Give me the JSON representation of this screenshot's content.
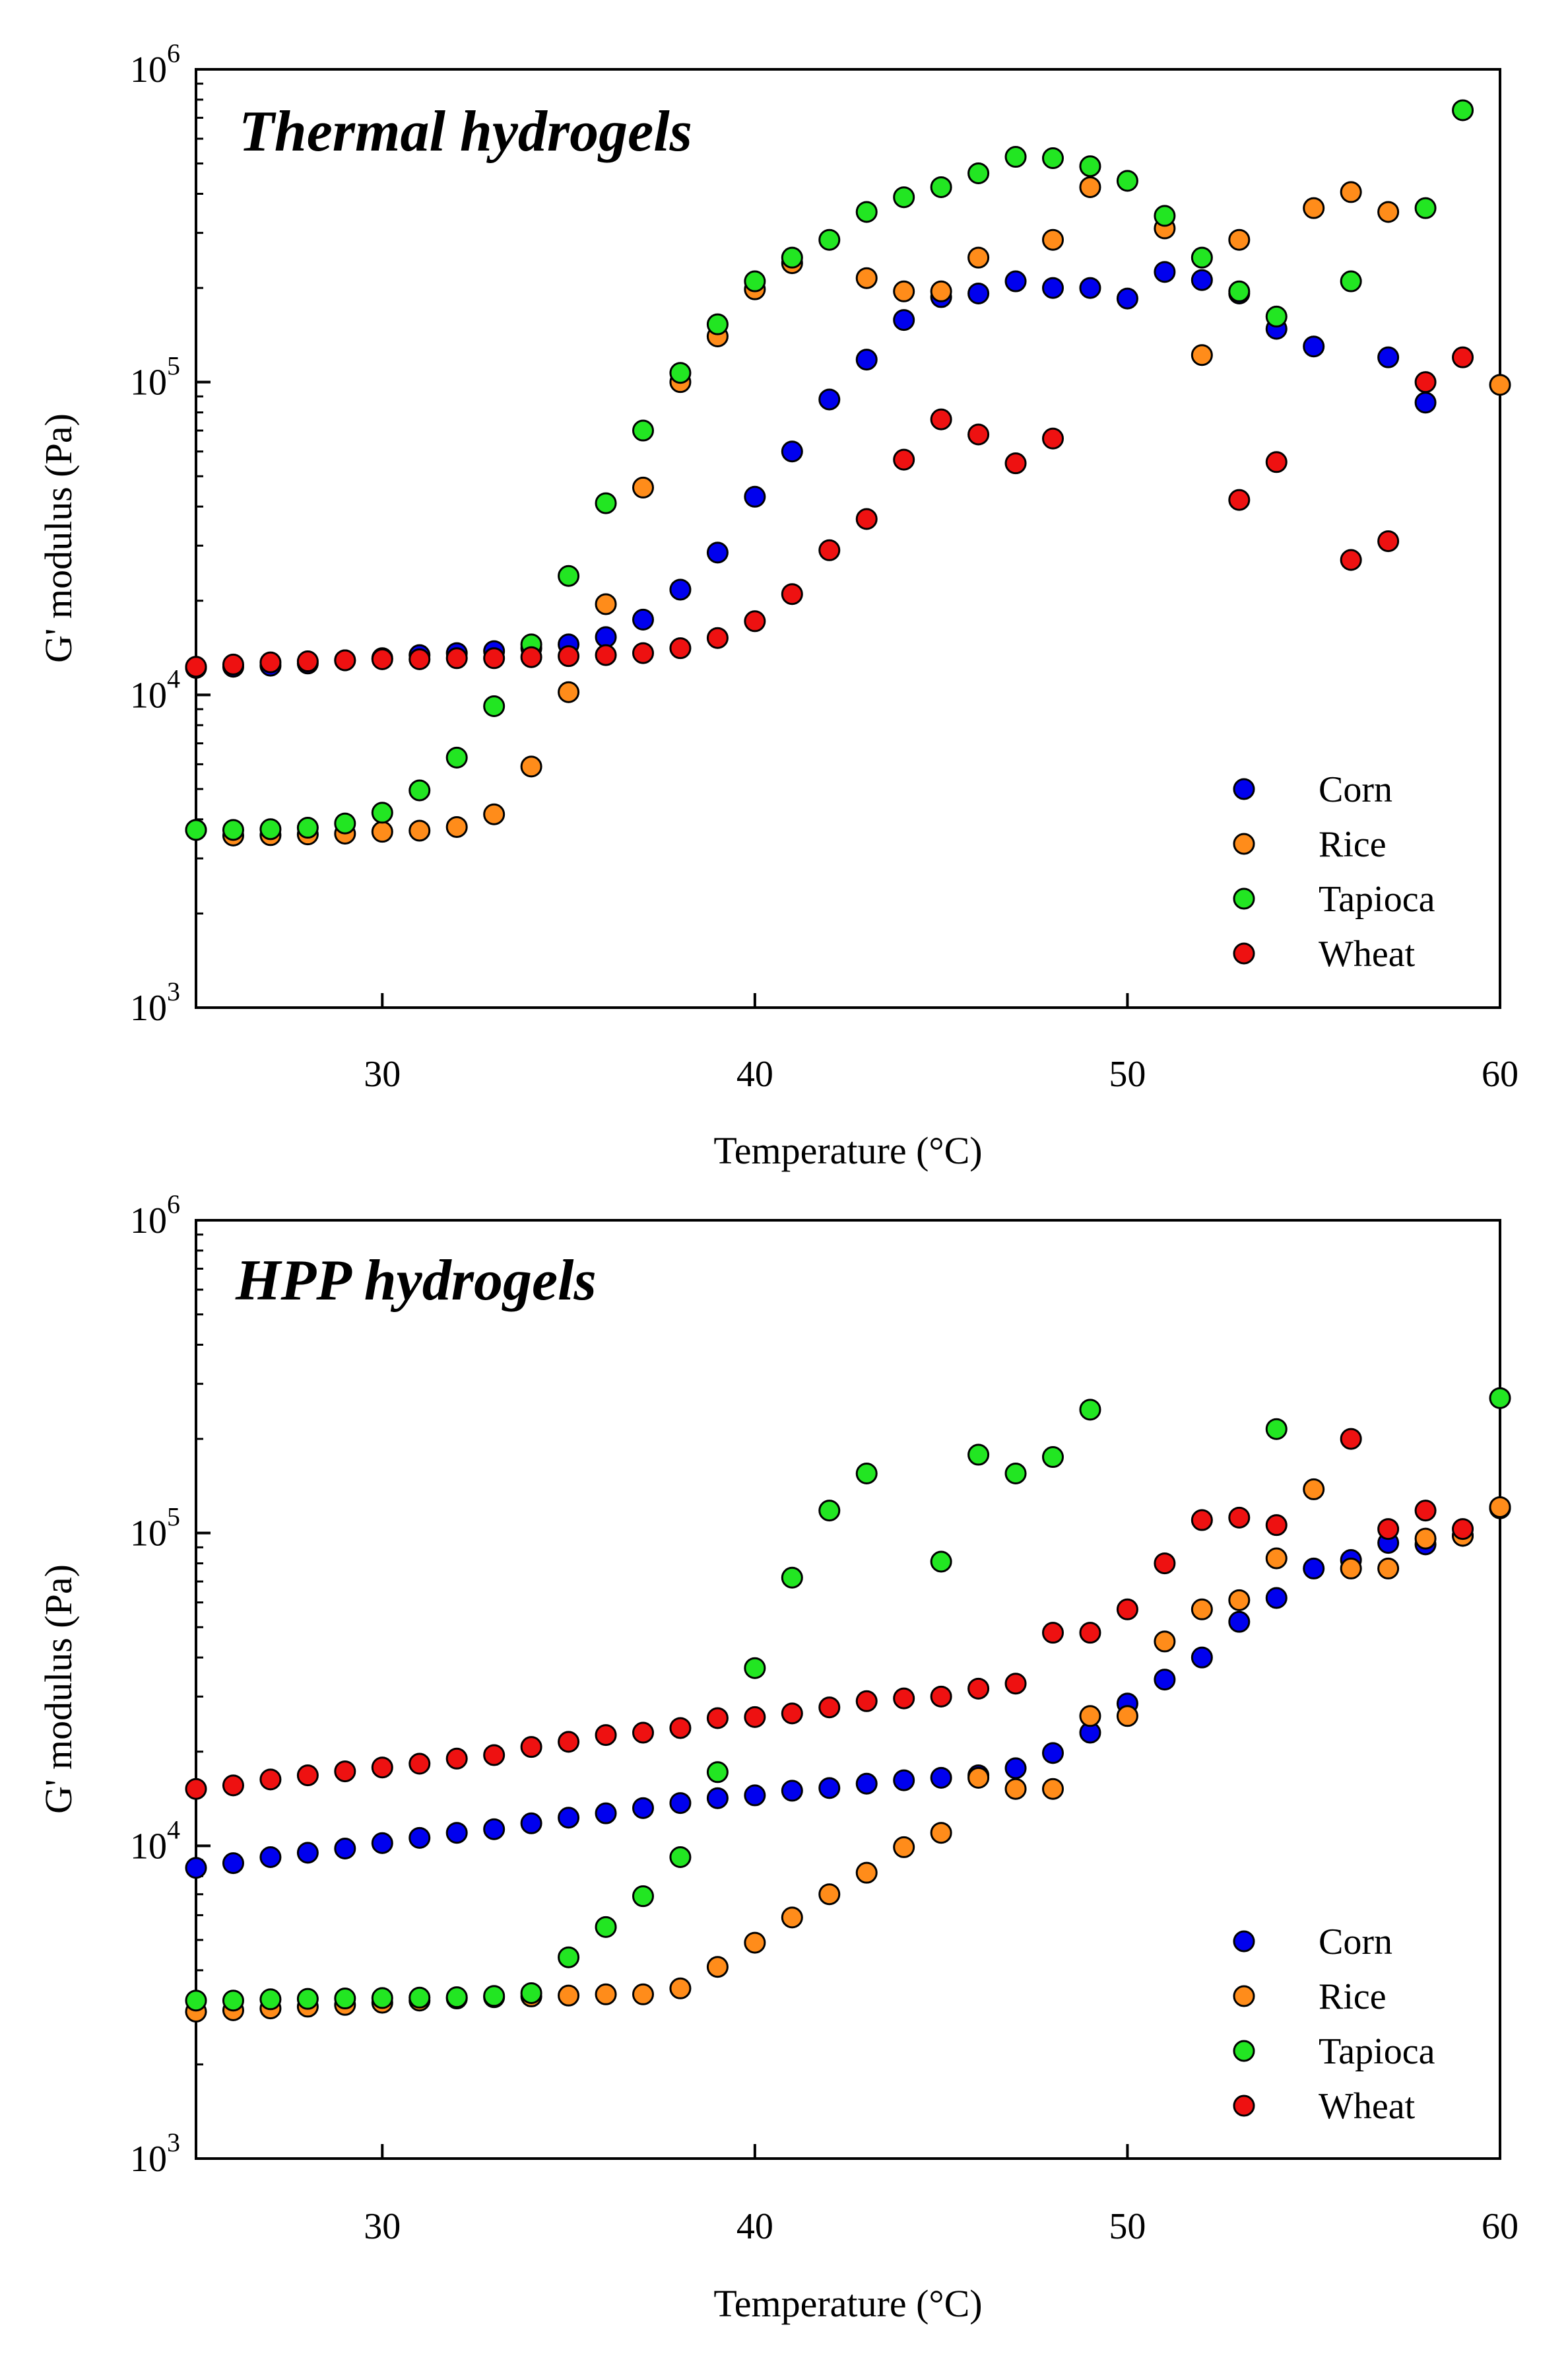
{
  "figure": {
    "background": "#ffffff"
  },
  "series_colors": {
    "Corn": "#0000ee",
    "Rice": "#ff8c1a",
    "Tapioca": "#22e622",
    "Wheat": "#ee1111"
  },
  "chart_data": [
    {
      "type": "scatter",
      "title": "Thermal hydrogels",
      "xlabel": "Temperature (°C)",
      "ylabel": "G' modulus (Pa)",
      "xlim": [
        25,
        60
      ],
      "ylim": [
        1000,
        1000000
      ],
      "yscale": "log",
      "x_ticks": [
        30,
        40,
        50,
        60
      ],
      "y_ticks": [
        {
          "value": 1000,
          "base": "10",
          "exp": "3"
        },
        {
          "value": 10000,
          "base": "10",
          "exp": "4"
        },
        {
          "value": 100000,
          "base": "10",
          "exp": "5"
        },
        {
          "value": 1000000,
          "base": "10",
          "exp": "6"
        }
      ],
      "legend_position": "bottom-right",
      "series": [
        {
          "name": "Corn",
          "points": [
            [
              25,
              12200
            ],
            [
              26,
              12300
            ],
            [
              27,
              12400
            ],
            [
              28,
              12600
            ],
            [
              29,
              12900
            ],
            [
              30,
              13100
            ],
            [
              31,
              13400
            ],
            [
              32,
              13600
            ],
            [
              33,
              13800
            ],
            [
              34,
              14100
            ],
            [
              35,
              14500
            ],
            [
              36,
              15300
            ],
            [
              37,
              17400
            ],
            [
              38,
              21700
            ],
            [
              39,
              28500
            ],
            [
              40,
              43000
            ],
            [
              41,
              60000
            ],
            [
              42,
              88000
            ],
            [
              43,
              118000
            ],
            [
              44,
              158000
            ],
            [
              45,
              187000
            ],
            [
              46,
              192000
            ],
            [
              47,
              210000
            ],
            [
              48,
              200000
            ],
            [
              49,
              200000
            ],
            [
              50,
              185000
            ],
            [
              51,
              225000
            ],
            [
              52,
              212000
            ],
            [
              53,
              192000
            ],
            [
              54,
              148000
            ],
            [
              55,
              130000
            ],
            [
              57,
              120000
            ],
            [
              58,
              86000
            ]
          ]
        },
        {
          "name": "Rice",
          "points": [
            [
              25,
              3700
            ],
            [
              26,
              3550
            ],
            [
              27,
              3560
            ],
            [
              28,
              3580
            ],
            [
              29,
              3600
            ],
            [
              30,
              3650
            ],
            [
              31,
              3680
            ],
            [
              32,
              3780
            ],
            [
              33,
              4150
            ],
            [
              34,
              5900
            ],
            [
              35,
              10200
            ],
            [
              36,
              19500
            ],
            [
              37,
              46000
            ],
            [
              38,
              100000
            ],
            [
              39,
              140000
            ],
            [
              40,
              198000
            ],
            [
              41,
              240000
            ],
            [
              43,
              215000
            ],
            [
              44,
              195000
            ],
            [
              45,
              195000
            ],
            [
              46,
              250000
            ],
            [
              48,
              285000
            ],
            [
              49,
              420000
            ],
            [
              51,
              310000
            ],
            [
              52,
              122000
            ],
            [
              53,
              285000
            ],
            [
              55,
              360000
            ],
            [
              56,
              405000
            ],
            [
              57,
              350000
            ],
            [
              60,
              98000
            ]
          ]
        },
        {
          "name": "Tapioca",
          "points": [
            [
              25,
              3700
            ],
            [
              26,
              3700
            ],
            [
              27,
              3720
            ],
            [
              28,
              3760
            ],
            [
              29,
              3880
            ],
            [
              30,
              4200
            ],
            [
              31,
              4950
            ],
            [
              32,
              6300
            ],
            [
              33,
              9200
            ],
            [
              34,
              14500
            ],
            [
              35,
              24000
            ],
            [
              36,
              41000
            ],
            [
              37,
              70000
            ],
            [
              38,
              107000
            ],
            [
              39,
              153000
            ],
            [
              40,
              210000
            ],
            [
              41,
              250000
            ],
            [
              42,
              285000
            ],
            [
              43,
              350000
            ],
            [
              44,
              390000
            ],
            [
              45,
              420000
            ],
            [
              46,
              465000
            ],
            [
              47,
              525000
            ],
            [
              48,
              520000
            ],
            [
              49,
              490000
            ],
            [
              50,
              440000
            ],
            [
              51,
              340000
            ],
            [
              52,
              250000
            ],
            [
              53,
              195000
            ],
            [
              54,
              162000
            ],
            [
              56,
              210000
            ],
            [
              58,
              360000
            ],
            [
              59,
              740000
            ]
          ]
        },
        {
          "name": "Wheat",
          "points": [
            [
              25,
              12300
            ],
            [
              26,
              12500
            ],
            [
              27,
              12700
            ],
            [
              28,
              12800
            ],
            [
              29,
              12900
            ],
            [
              30,
              13000
            ],
            [
              31,
              13000
            ],
            [
              32,
              13100
            ],
            [
              33,
              13100
            ],
            [
              34,
              13200
            ],
            [
              35,
              13300
            ],
            [
              36,
              13400
            ],
            [
              37,
              13600
            ],
            [
              38,
              14100
            ],
            [
              39,
              15200
            ],
            [
              40,
              17200
            ],
            [
              41,
              21000
            ],
            [
              42,
              29000
            ],
            [
              43,
              36500
            ],
            [
              44,
              56500
            ],
            [
              45,
              76000
            ],
            [
              46,
              68000
            ],
            [
              47,
              55000
            ],
            [
              48,
              66000
            ],
            [
              53,
              42000
            ],
            [
              54,
              55500
            ],
            [
              56,
              27000
            ],
            [
              57,
              31000
            ],
            [
              58,
              100000
            ],
            [
              59,
              120000
            ]
          ]
        }
      ]
    },
    {
      "type": "scatter",
      "title": "HPP hydrogels",
      "xlabel": "Temperature (°C)",
      "ylabel": "G' modulus (Pa)",
      "xlim": [
        25,
        60
      ],
      "ylim": [
        1000,
        1000000
      ],
      "yscale": "log",
      "x_ticks": [
        30,
        40,
        50,
        60
      ],
      "y_ticks": [
        {
          "value": 1000,
          "base": "10",
          "exp": "3"
        },
        {
          "value": 10000,
          "base": "10",
          "exp": "4"
        },
        {
          "value": 100000,
          "base": "10",
          "exp": "5"
        },
        {
          "value": 1000000,
          "base": "10",
          "exp": "6"
        }
      ],
      "legend_position": "bottom-right",
      "series": [
        {
          "name": "Corn",
          "points": [
            [
              25,
              8500
            ],
            [
              26,
              8800
            ],
            [
              27,
              9200
            ],
            [
              28,
              9500
            ],
            [
              29,
              9800
            ],
            [
              30,
              10200
            ],
            [
              31,
              10600
            ],
            [
              32,
              11000
            ],
            [
              33,
              11300
            ],
            [
              34,
              11800
            ],
            [
              35,
              12300
            ],
            [
              36,
              12700
            ],
            [
              37,
              13200
            ],
            [
              38,
              13700
            ],
            [
              39,
              14200
            ],
            [
              40,
              14500
            ],
            [
              41,
              15000
            ],
            [
              42,
              15300
            ],
            [
              43,
              15800
            ],
            [
              44,
              16200
            ],
            [
              45,
              16500
            ],
            [
              46,
              16800
            ],
            [
              47,
              17700
            ],
            [
              48,
              19800
            ],
            [
              49,
              23000
            ],
            [
              50,
              28500
            ],
            [
              51,
              34000
            ],
            [
              52,
              40000
            ],
            [
              53,
              52000
            ],
            [
              54,
              62000
            ],
            [
              55,
              77000
            ],
            [
              56,
              82000
            ],
            [
              57,
              93000
            ],
            [
              58,
              92000
            ],
            [
              59,
              98000
            ],
            [
              60,
              120000
            ]
          ]
        },
        {
          "name": "Rice",
          "points": [
            [
              25,
              2950
            ],
            [
              26,
              2980
            ],
            [
              27,
              3020
            ],
            [
              28,
              3060
            ],
            [
              29,
              3100
            ],
            [
              30,
              3150
            ],
            [
              31,
              3200
            ],
            [
              32,
              3250
            ],
            [
              33,
              3280
            ],
            [
              34,
              3300
            ],
            [
              35,
              3320
            ],
            [
              36,
              3350
            ],
            [
              37,
              3350
            ],
            [
              38,
              3500
            ],
            [
              39,
              4100
            ],
            [
              40,
              4900
            ],
            [
              41,
              5900
            ],
            [
              42,
              7000
            ],
            [
              43,
              8200
            ],
            [
              44,
              9900
            ],
            [
              45,
              11000
            ],
            [
              46,
              16500
            ],
            [
              47,
              15200
            ],
            [
              48,
              15200
            ],
            [
              49,
              26000
            ],
            [
              50,
              26000
            ],
            [
              51,
              45000
            ],
            [
              52,
              57000
            ],
            [
              53,
              61000
            ],
            [
              54,
              83000
            ],
            [
              55,
              138000
            ],
            [
              56,
              77000
            ],
            [
              57,
              77000
            ],
            [
              58,
              96000
            ],
            [
              59,
              98000
            ],
            [
              60,
              121000
            ]
          ]
        },
        {
          "name": "Tapioca",
          "points": [
            [
              25,
              3200
            ],
            [
              26,
              3200
            ],
            [
              27,
              3230
            ],
            [
              28,
              3240
            ],
            [
              29,
              3250
            ],
            [
              30,
              3260
            ],
            [
              31,
              3270
            ],
            [
              32,
              3280
            ],
            [
              33,
              3310
            ],
            [
              34,
              3380
            ],
            [
              35,
              4400
            ],
            [
              36,
              5500
            ],
            [
              37,
              6900
            ],
            [
              38,
              9200
            ],
            [
              39,
              17200
            ],
            [
              40,
              37000
            ],
            [
              41,
              72000
            ],
            [
              42,
              118000
            ],
            [
              43,
              155000
            ],
            [
              45,
              81000
            ],
            [
              46,
              178000
            ],
            [
              47,
              155000
            ],
            [
              48,
              175000
            ],
            [
              49,
              248000
            ],
            [
              54,
              215000
            ],
            [
              60,
              270000
            ]
          ]
        },
        {
          "name": "Wheat",
          "points": [
            [
              25,
              15200
            ],
            [
              26,
              15600
            ],
            [
              27,
              16300
            ],
            [
              28,
              16800
            ],
            [
              29,
              17300
            ],
            [
              30,
              17800
            ],
            [
              31,
              18300
            ],
            [
              32,
              19000
            ],
            [
              33,
              19500
            ],
            [
              34,
              20700
            ],
            [
              35,
              21500
            ],
            [
              36,
              22600
            ],
            [
              37,
              23000
            ],
            [
              38,
              23800
            ],
            [
              39,
              25600
            ],
            [
              40,
              25800
            ],
            [
              41,
              26500
            ],
            [
              42,
              27700
            ],
            [
              43,
              29000
            ],
            [
              44,
              29600
            ],
            [
              45,
              30000
            ],
            [
              46,
              31800
            ],
            [
              47,
              33000
            ],
            [
              48,
              48000
            ],
            [
              49,
              48000
            ],
            [
              50,
              57000
            ],
            [
              51,
              80000
            ],
            [
              52,
              110000
            ],
            [
              53,
              112000
            ],
            [
              54,
              106000
            ],
            [
              56,
              200000
            ],
            [
              57,
              103000
            ],
            [
              58,
              118000
            ],
            [
              59,
              103000
            ]
          ]
        }
      ]
    }
  ]
}
